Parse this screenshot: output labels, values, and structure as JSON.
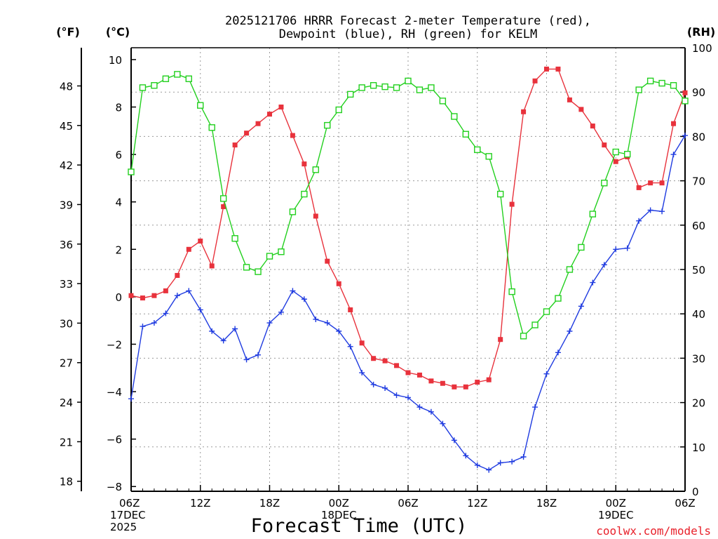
{
  "chart_data": {
    "type": "line",
    "title_lines": [
      "2025121706 HRRR Forecast 2-meter Temperature (red),",
      "Dewpoint (blue), RH (green) for KELM"
    ],
    "xlabel": "Forecast Time (UTC)",
    "credit": "coolwx.com/models",
    "y_left_celsius": {
      "unit": "(°C)",
      "range": [
        -8.2,
        10.5
      ],
      "ticks": [
        -8,
        -6,
        -4,
        -2,
        0,
        2,
        4,
        6,
        8,
        10
      ]
    },
    "y_left_fahrenheit": {
      "unit": "(°F)",
      "ticks": [
        18,
        21,
        24,
        27,
        30,
        33,
        36,
        39,
        42,
        45,
        48
      ]
    },
    "y_right_rh": {
      "unit": "(RH)",
      "range": [
        0,
        100
      ],
      "ticks": [
        0,
        10,
        20,
        30,
        40,
        50,
        60,
        70,
        80,
        90,
        100
      ]
    },
    "x_range_hours": [
      0,
      48
    ],
    "x_ticks": [
      {
        "h": 0,
        "lines": [
          "06Z",
          "17DEC",
          "2025"
        ]
      },
      {
        "h": 6,
        "lines": [
          "12Z"
        ]
      },
      {
        "h": 12,
        "lines": [
          "18Z"
        ]
      },
      {
        "h": 18,
        "lines": [
          "00Z",
          "18DEC"
        ]
      },
      {
        "h": 24,
        "lines": [
          "06Z"
        ]
      },
      {
        "h": 30,
        "lines": [
          "12Z"
        ]
      },
      {
        "h": 36,
        "lines": [
          "18Z"
        ]
      },
      {
        "h": 42,
        "lines": [
          "00Z",
          "19DEC"
        ]
      },
      {
        "h": 48,
        "lines": [
          "06Z"
        ]
      }
    ],
    "hours": [
      0,
      1,
      2,
      3,
      4,
      5,
      6,
      7,
      8,
      9,
      10,
      11,
      12,
      13,
      14,
      15,
      16,
      17,
      18,
      19,
      20,
      21,
      22,
      23,
      24,
      25,
      26,
      27,
      28,
      29,
      30,
      31,
      32,
      33,
      34,
      35,
      36,
      37,
      38,
      39,
      40,
      41,
      42,
      43,
      44,
      45,
      46,
      47,
      48
    ],
    "series": [
      {
        "name": "Temperature",
        "axis": "celsius",
        "color": "#e8323c",
        "marker": "filled-square",
        "values": [
          0.05,
          -0.05,
          0.05,
          0.25,
          0.9,
          2.0,
          2.35,
          1.3,
          3.8,
          6.4,
          6.9,
          7.3,
          7.7,
          8.0,
          6.8,
          5.6,
          3.4,
          1.5,
          0.55,
          -0.55,
          -1.95,
          -2.6,
          -2.7,
          -2.9,
          -3.2,
          -3.3,
          -3.55,
          -3.65,
          -3.8,
          -3.8,
          -3.6,
          -3.5,
          -1.8,
          3.9,
          7.8,
          9.1,
          9.6,
          9.6,
          8.3,
          7.9,
          7.2,
          6.4,
          5.7,
          5.9,
          4.6,
          4.8,
          4.8,
          7.3,
          8.6
        ]
      },
      {
        "name": "Dewpoint",
        "axis": "celsius",
        "color": "#1f3be0",
        "marker": "plus",
        "values": [
          -4.3,
          -1.25,
          -1.1,
          -0.7,
          0.05,
          0.25,
          -0.55,
          -1.45,
          -1.85,
          -1.35,
          -2.65,
          -2.45,
          -1.1,
          -0.65,
          0.25,
          -0.1,
          -0.95,
          -1.1,
          -1.45,
          -2.1,
          -3.2,
          -3.7,
          -3.85,
          -4.15,
          -4.25,
          -4.65,
          -4.85,
          -5.35,
          -6.05,
          -6.7,
          -7.1,
          -7.3,
          -7.0,
          -6.95,
          -6.75,
          -4.65,
          -3.25,
          -2.35,
          -1.45,
          -0.4,
          0.6,
          1.35,
          2.0,
          2.05,
          3.2,
          3.65,
          3.6,
          6.0,
          6.8
        ]
      },
      {
        "name": "RH",
        "axis": "rh",
        "color": "#22d01e",
        "marker": "open-square",
        "values": [
          72,
          91,
          91.5,
          93,
          94,
          93,
          87,
          82,
          66,
          57,
          50.5,
          49.5,
          53,
          54,
          63,
          67,
          72.5,
          82.5,
          86,
          89.5,
          91,
          91.5,
          91.2,
          91,
          92.5,
          90.5,
          91,
          88,
          84.5,
          80.5,
          77,
          75.5,
          67,
          45,
          35,
          37.5,
          40.5,
          43.5,
          50,
          55,
          62.5,
          69.5,
          76.5,
          76,
          90.5,
          92.5,
          92,
          91.5,
          88
        ]
      }
    ]
  }
}
